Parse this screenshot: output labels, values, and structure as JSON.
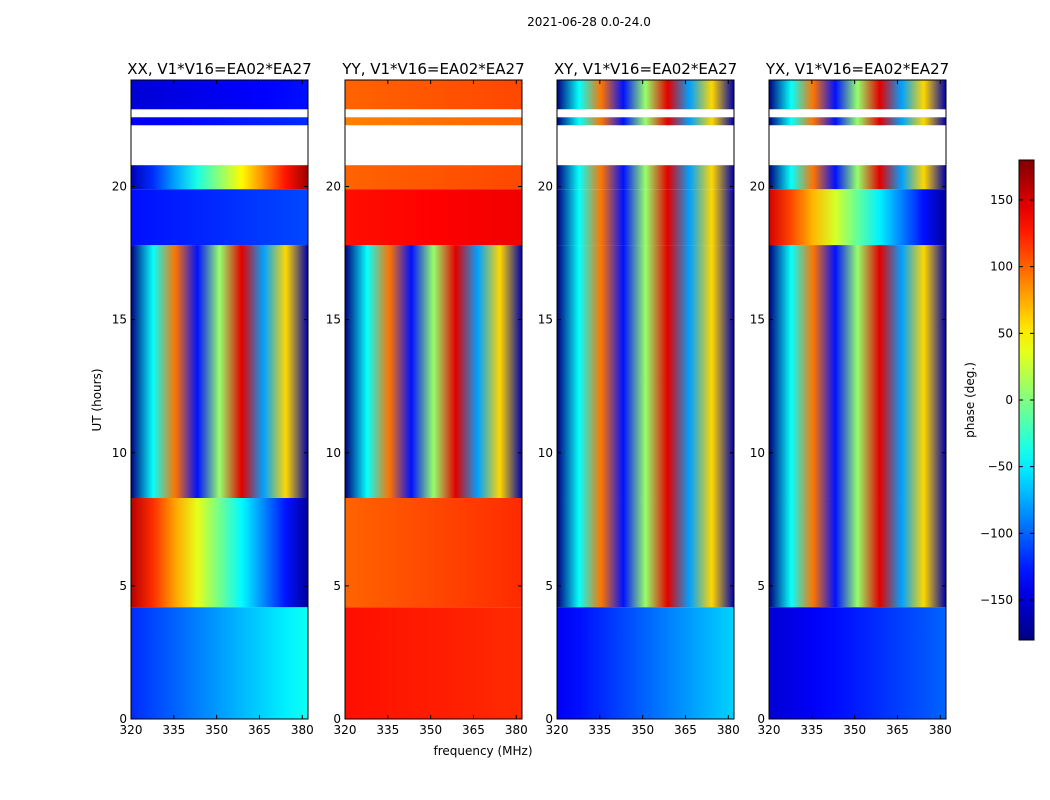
{
  "chart_data": {
    "type": "heatmap",
    "suptitle": "2021-06-28 0.0-24.0",
    "xlabel": "frequency (MHz)",
    "ylabel": "UT (hours)",
    "xlim": [
      320,
      382
    ],
    "ylim": [
      0,
      24
    ],
    "xticks": [
      320,
      335,
      350,
      365,
      380
    ],
    "yticks": [
      0,
      5,
      10,
      15,
      20
    ],
    "colorbar": {
      "label": "phase (deg.)",
      "range": [
        -180,
        180
      ],
      "ticks": [
        150,
        100,
        50,
        0,
        -50,
        -100,
        -150
      ],
      "tick_labels": [
        "150",
        "100",
        "50",
        "0",
        "−50",
        "−100",
        "−150"
      ],
      "colormap": "jet"
    },
    "panels": [
      {
        "title": "XX, V1*V16=EA02*EA27",
        "bands": [
          {
            "t0": 0.0,
            "t1": 4.2,
            "phase_low": -120,
            "phase_high": -40
          },
          {
            "t0": 4.2,
            "t1": 8.3,
            "phase_low": 160,
            "phase_high": -170
          },
          {
            "t0": 8.3,
            "t1": 17.8,
            "phase_low": -180,
            "phase_high": 180
          },
          {
            "t0": 17.8,
            "t1": 19.9,
            "phase_low": -130,
            "phase_high": -110
          },
          {
            "t0": 19.9,
            "t1": 20.8,
            "phase_low": -160,
            "phase_high": 170
          },
          {
            "t0": 22.3,
            "t1": 22.6,
            "phase_low": -140,
            "phase_high": -120
          },
          {
            "t0": 22.9,
            "t1": 24.0,
            "phase_low": -150,
            "phase_high": -130
          }
        ]
      },
      {
        "title": "YY, V1*V16=EA02*EA27",
        "bands": [
          {
            "t0": 0.0,
            "t1": 4.2,
            "phase_low": 130,
            "phase_high": 120
          },
          {
            "t0": 4.2,
            "t1": 8.3,
            "phase_low": 100,
            "phase_high": 120
          },
          {
            "t0": 8.3,
            "t1": 17.8,
            "phase_low": -180,
            "phase_high": 180
          },
          {
            "t0": 17.8,
            "t1": 19.9,
            "phase_low": 130,
            "phase_high": 140
          },
          {
            "t0": 19.9,
            "t1": 20.8,
            "phase_low": 100,
            "phase_high": 110
          },
          {
            "t0": 22.3,
            "t1": 22.6,
            "phase_low": 90,
            "phase_high": 100
          },
          {
            "t0": 22.9,
            "t1": 24.0,
            "phase_low": 100,
            "phase_high": 110
          }
        ]
      },
      {
        "title": "XY, V1*V16=EA02*EA27",
        "bands": [
          {
            "t0": 0.0,
            "t1": 4.2,
            "phase_low": -140,
            "phase_high": -60
          },
          {
            "t0": 4.2,
            "t1": 8.3,
            "phase_low": -180,
            "phase_high": 180
          },
          {
            "t0": 8.3,
            "t1": 17.8,
            "phase_low": -180,
            "phase_high": 180
          },
          {
            "t0": 17.8,
            "t1": 19.9,
            "phase_low": -180,
            "phase_high": 180
          },
          {
            "t0": 19.9,
            "t1": 20.8,
            "phase_low": -180,
            "phase_high": 180
          },
          {
            "t0": 22.3,
            "t1": 22.6,
            "phase_low": -180,
            "phase_high": 180
          },
          {
            "t0": 22.9,
            "t1": 24.0,
            "phase_low": -180,
            "phase_high": 180
          }
        ]
      },
      {
        "title": "YX, V1*V16=EA02*EA27",
        "bands": [
          {
            "t0": 0.0,
            "t1": 4.2,
            "phase_low": -150,
            "phase_high": -100
          },
          {
            "t0": 4.2,
            "t1": 8.3,
            "phase_low": -180,
            "phase_high": 180
          },
          {
            "t0": 8.3,
            "t1": 17.8,
            "phase_low": -180,
            "phase_high": 180
          },
          {
            "t0": 17.8,
            "t1": 19.9,
            "phase_low": 150,
            "phase_high": -170
          },
          {
            "t0": 19.9,
            "t1": 20.8,
            "phase_low": -180,
            "phase_high": 180
          },
          {
            "t0": 22.3,
            "t1": 22.6,
            "phase_low": -180,
            "phase_high": 180
          },
          {
            "t0": 22.9,
            "t1": 24.0,
            "phase_low": -180,
            "phase_high": 180
          }
        ]
      }
    ]
  }
}
